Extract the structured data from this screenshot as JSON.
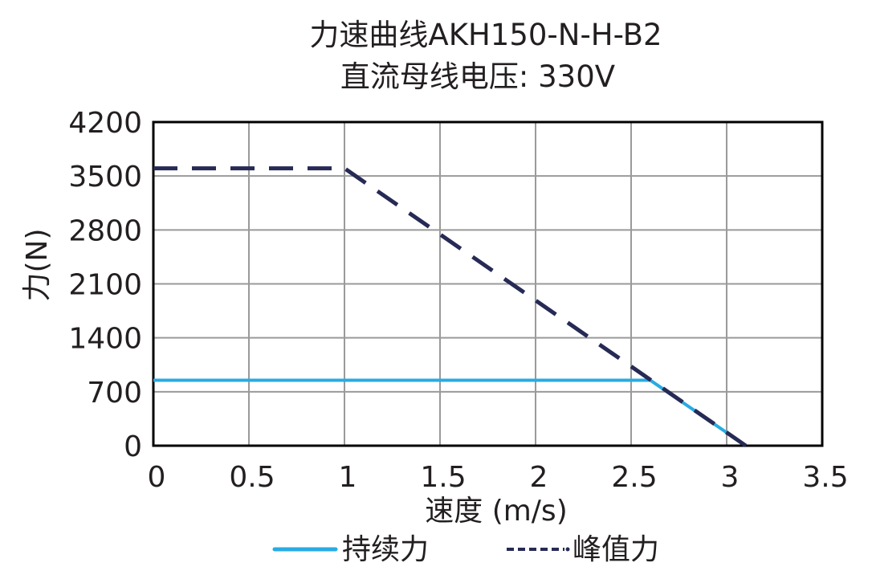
{
  "chart_data": {
    "type": "line",
    "title": "力速曲线AKH150-N-H-B2",
    "subtitle": "直流母线电压: 330V",
    "xlabel": "速度 (m/s)",
    "ylabel": "力(N)",
    "xlim": [
      0,
      3.5
    ],
    "ylim": [
      0,
      4200
    ],
    "xticks": [
      "0",
      "0.5",
      "1",
      "1.5",
      "2",
      "2.5",
      "3",
      "3.5"
    ],
    "yticks": [
      "0",
      "700",
      "1400",
      "2100",
      "2800",
      "3500",
      "4200"
    ],
    "grid": true,
    "legend_position": "bottom",
    "series": [
      {
        "name": "持续力",
        "style": "solid",
        "color": "#29abe2",
        "x": [
          0,
          2.6,
          3.1
        ],
        "y": [
          850,
          850,
          0
        ]
      },
      {
        "name": "峰值力",
        "style": "dashed",
        "color": "#262a55",
        "x": [
          0,
          1.0,
          3.1
        ],
        "y": [
          3600,
          3600,
          0
        ]
      }
    ]
  }
}
